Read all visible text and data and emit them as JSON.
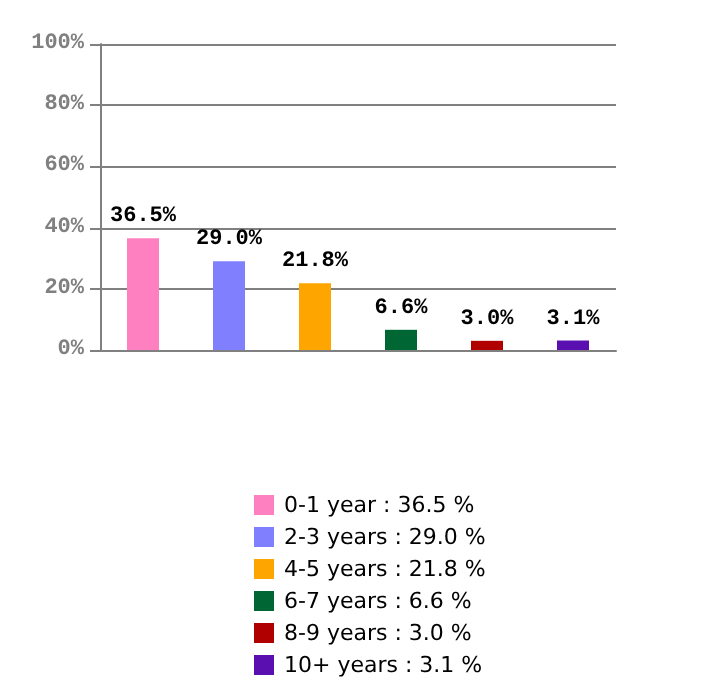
{
  "chart_data": {
    "type": "bar",
    "categories": [
      null,
      null,
      null,
      null,
      null,
      null
    ],
    "stacked": true,
    "series": [
      {
        "name": "0-1 year : 36.5 %",
        "color": "#ff80c0",
        "values": [
          36.5,
          null,
          null,
          null,
          null,
          null
        ],
        "value_labels": [
          "36.5%",
          null,
          null,
          null,
          null,
          null
        ]
      },
      {
        "name": "2-3 years : 29.0 %",
        "color": "#8080ff",
        "values": [
          null,
          29.0,
          null,
          null,
          null,
          null
        ],
        "value_labels": [
          null,
          "29.0%",
          null,
          null,
          null,
          null
        ]
      },
      {
        "name": "4-5 years : 21.8 %",
        "color": "#ffa500",
        "values": [
          null,
          null,
          21.8,
          null,
          null,
          null
        ],
        "value_labels": [
          null,
          null,
          "21.8%",
          null,
          null,
          null
        ]
      },
      {
        "name": "6-7 years : 6.6 %",
        "color": "#006633",
        "values": [
          null,
          null,
          null,
          6.6,
          null,
          null
        ],
        "value_labels": [
          null,
          null,
          null,
          "6.6%",
          null,
          null
        ]
      },
      {
        "name": "8-9 years : 3.0 %",
        "color": "#b00000",
        "values": [
          null,
          null,
          null,
          null,
          3.0,
          null
        ],
        "value_labels": [
          null,
          null,
          null,
          null,
          "3.0%",
          null
        ]
      },
      {
        "name": "10+ years : 3.1 %",
        "color": "#5a10b0",
        "values": [
          null,
          null,
          null,
          null,
          null,
          3.1
        ],
        "value_labels": [
          null,
          null,
          null,
          null,
          null,
          "3.1%"
        ]
      }
    ],
    "ylim": [
      0,
      100
    ],
    "yticks": [
      {
        "value": 0,
        "label": "0%"
      },
      {
        "value": 20,
        "label": "20%"
      },
      {
        "value": 40,
        "label": "40%"
      },
      {
        "value": 60,
        "label": "60%"
      },
      {
        "value": 80,
        "label": "80%"
      },
      {
        "value": 100,
        "label": "100%"
      }
    ],
    "grid": "y",
    "legend": "bottom",
    "tick_labels": "y"
  }
}
